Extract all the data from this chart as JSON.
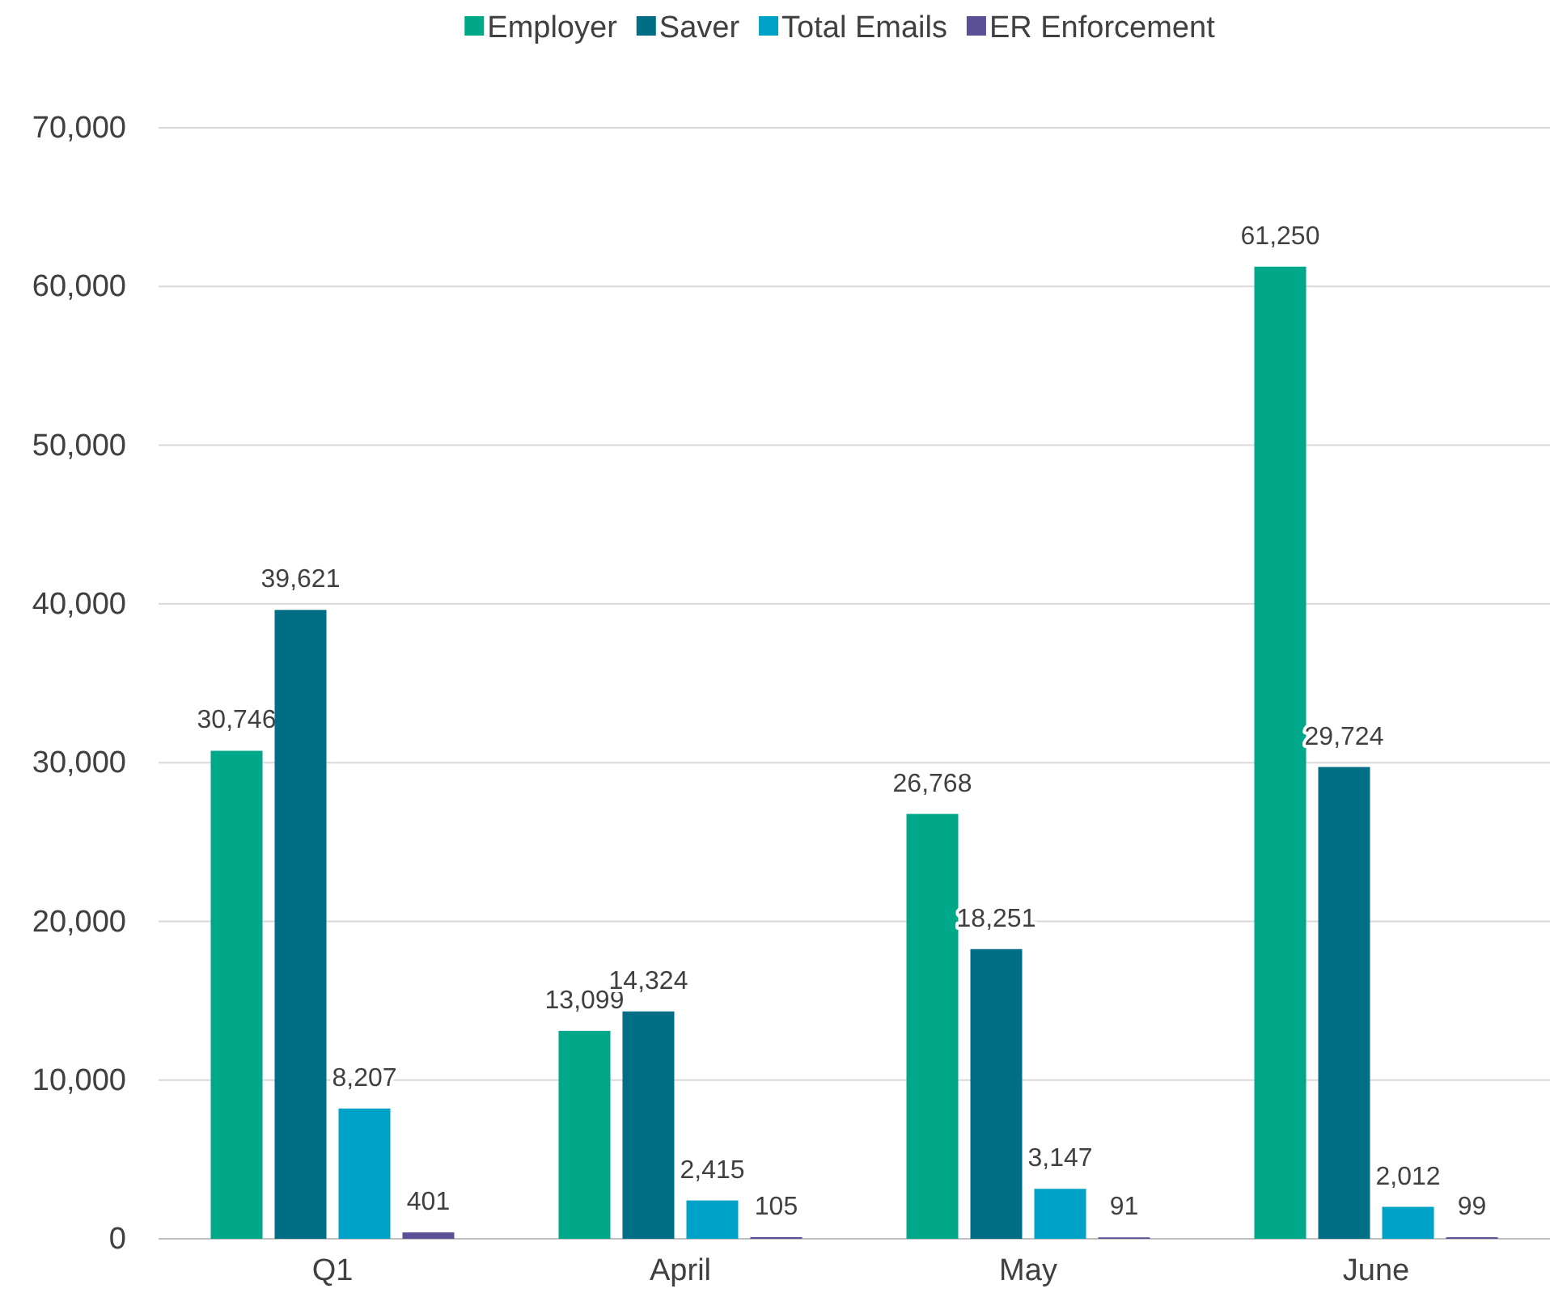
{
  "chart_data": {
    "type": "bar",
    "categories": [
      "Q1",
      "April",
      "May",
      "June"
    ],
    "series": [
      {
        "name": "Employer",
        "color": "#00a88a",
        "values": [
          30746,
          13099,
          26768,
          61250
        ],
        "value_labels": [
          "30,746",
          "13,099",
          "26,768",
          "61,250"
        ]
      },
      {
        "name": "Saver",
        "color": "#006e85",
        "values": [
          39621,
          14324,
          18251,
          29724
        ],
        "value_labels": [
          "39,621",
          "14,324",
          "18,251",
          "29,724"
        ]
      },
      {
        "name": "Total Emails",
        "color": "#00a3c7",
        "values": [
          8207,
          2415,
          3147,
          2012
        ],
        "value_labels": [
          "8,207",
          "2,415",
          "3,147",
          "2,012"
        ]
      },
      {
        "name": "ER Enforcement",
        "color": "#5b4f96",
        "values": [
          401,
          105,
          91,
          99
        ],
        "value_labels": [
          "401",
          "105",
          "91",
          "99"
        ]
      }
    ],
    "ylim": [
      0,
      70000
    ],
    "yticks": [
      {
        "value": 0,
        "label": "0"
      },
      {
        "value": 10000,
        "label": "10,000"
      },
      {
        "value": 20000,
        "label": "20,000"
      },
      {
        "value": 30000,
        "label": "30,000"
      },
      {
        "value": 40000,
        "label": "40,000"
      },
      {
        "value": 50000,
        "label": "50,000"
      },
      {
        "value": 60000,
        "label": "60,000"
      },
      {
        "value": 70000,
        "label": "70,000"
      }
    ],
    "grid": "y",
    "legend": "top"
  }
}
